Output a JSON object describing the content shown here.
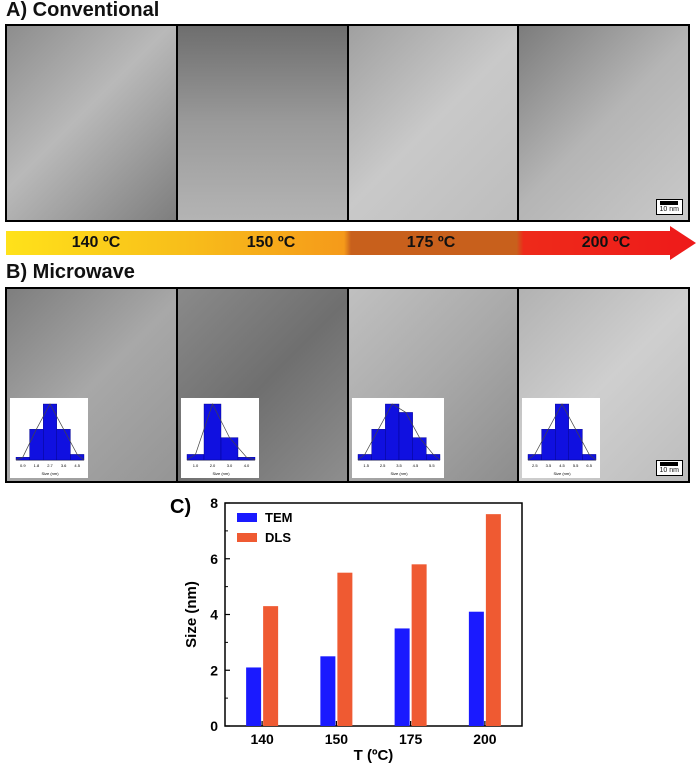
{
  "panel_a": {
    "title": "A) Conventional",
    "scale_label": "10 nm"
  },
  "arrow": {
    "labels": [
      "140 ºC",
      "150 ºC",
      "175 ºC",
      "200 ºC"
    ],
    "colors": [
      "#ffe21a",
      "#f7a21b",
      "#c8601c",
      "#ee1a1a"
    ]
  },
  "panel_b": {
    "title": "B) Microwave",
    "scale_label": "10 nm",
    "insets": [
      {
        "bars": [
          0.05,
          0.55,
          1.0,
          0.55,
          0.1
        ],
        "ticks": [
          "0.9",
          "1.8",
          "2.7",
          "3.6",
          "4.5"
        ],
        "xlabel": "Size (nm)"
      },
      {
        "bars": [
          0.1,
          1.0,
          0.4,
          0.05
        ],
        "ticks": [
          "1.0",
          "2.0",
          "3.0",
          "4.0"
        ],
        "xlabel": "Size (nm)"
      },
      {
        "bars": [
          0.1,
          0.55,
          1.0,
          0.85,
          0.4,
          0.1
        ],
        "ticks": [
          "1.5",
          "2.5",
          "3.5",
          "4.5",
          "5.5"
        ],
        "xlabel": "Size (nm)"
      },
      {
        "bars": [
          0.1,
          0.55,
          1.0,
          0.55,
          0.1
        ],
        "ticks": [
          "2.5",
          "3.5",
          "4.5",
          "5.5",
          "6.5"
        ],
        "xlabel": "Size (nm)"
      }
    ]
  },
  "chart_data": {
    "type": "bar",
    "panel_label": "C)",
    "categories": [
      "140",
      "150",
      "175",
      "200"
    ],
    "series": [
      {
        "name": "TEM",
        "values": [
          2.1,
          2.5,
          3.5,
          4.1
        ],
        "color": "#1a1aff"
      },
      {
        "name": "DLS",
        "values": [
          4.3,
          5.5,
          5.8,
          7.6
        ],
        "color": "#ef5a32"
      }
    ],
    "xlabel": "T (ºC)",
    "ylabel": "Size (nm)",
    "ylim": [
      0,
      8
    ],
    "yticks": [
      0,
      2,
      4,
      6,
      8
    ],
    "legend_position": "top-left",
    "grid": false
  }
}
